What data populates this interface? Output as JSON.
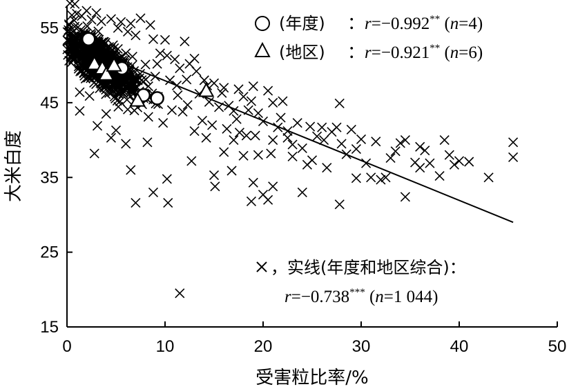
{
  "chart_data": {
    "type": "scatter",
    "xlabel": "受害粒比率/%",
    "ylabel": "大米白度",
    "xlim": [
      0,
      50
    ],
    "ylim": [
      15,
      58
    ],
    "x_ticks": [
      "0",
      "10",
      "20",
      "30",
      "40",
      "50"
    ],
    "y_ticks": [
      "15",
      "25",
      "35",
      "45",
      "55"
    ],
    "grid": false,
    "legend_placement": "top-right",
    "legend": [
      {
        "marker": "circle",
        "name": "(年度)",
        "r_label": "r",
        "stat": "=−0.992",
        "sig": "**",
        "n_label": "n",
        "n_text": "=4"
      },
      {
        "marker": "triangle",
        "name": "(地区)",
        "r_label": "r",
        "stat": "=−0.921",
        "sig": "**",
        "n_label": "n",
        "n_text": "=6"
      }
    ],
    "annotation": {
      "line1": "，实线(年度和地区综合)：",
      "r_label": "r",
      "stat": "=−0.738",
      "sig": "***",
      "n_label": "n",
      "n_text": "=1 044"
    },
    "trend_line": {
      "x": [
        0.5,
        45.5
      ],
      "y": [
        53.0,
        29.0
      ]
    },
    "series": [
      {
        "marker": "cross",
        "scattered_points": [
          [
            0.3,
            58.3
          ],
          [
            0.8,
            58.2
          ],
          [
            0.2,
            55.5
          ],
          [
            0.3,
            54.2
          ],
          [
            0.5,
            53.0
          ],
          [
            0.8,
            52.0
          ],
          [
            1.5,
            56.6
          ],
          [
            2.5,
            56.1
          ],
          [
            3.5,
            55.9
          ],
          [
            5.5,
            55.8
          ],
          [
            6.5,
            55.6
          ],
          [
            7.5,
            56.3
          ],
          [
            8.5,
            55.4
          ],
          [
            10.0,
            53.4
          ],
          [
            12.0,
            53.2
          ],
          [
            9.5,
            51.6
          ],
          [
            11.0,
            50.8
          ],
          [
            12.5,
            50.2
          ],
          [
            13.0,
            50.9
          ],
          [
            11.5,
            49.6
          ],
          [
            14.0,
            48.0
          ],
          [
            15.0,
            47.6
          ],
          [
            16.0,
            47.0
          ],
          [
            17.5,
            46.8
          ],
          [
            19.0,
            47.2
          ],
          [
            20.5,
            46.6
          ],
          [
            18.0,
            45.8
          ],
          [
            13.5,
            46.2
          ],
          [
            14.5,
            45.1
          ],
          [
            15.5,
            44.4
          ],
          [
            16.5,
            44.6
          ],
          [
            17.0,
            43.9
          ],
          [
            18.5,
            44.0
          ],
          [
            19.5,
            43.6
          ],
          [
            20.0,
            42.5
          ],
          [
            21.0,
            45.0
          ],
          [
            22.0,
            45.2
          ],
          [
            21.5,
            41.7
          ],
          [
            22.5,
            41.2
          ],
          [
            23.0,
            39.4
          ],
          [
            24.0,
            38.9
          ],
          [
            24.5,
            36.7
          ],
          [
            25.5,
            40.5
          ],
          [
            26.0,
            41.7
          ],
          [
            26.5,
            36.3
          ],
          [
            27.0,
            41.1
          ],
          [
            27.5,
            41.7
          ],
          [
            27.8,
            44.9
          ],
          [
            28.0,
            39.5
          ],
          [
            28.5,
            38.1
          ],
          [
            29.5,
            38.8
          ],
          [
            30.0,
            40.1
          ],
          [
            30.5,
            36.9
          ],
          [
            29.5,
            34.9
          ],
          [
            31.0,
            35.0
          ],
          [
            32.0,
            34.7
          ],
          [
            32.5,
            35.0
          ],
          [
            33.0,
            37.6
          ],
          [
            33.5,
            38.5
          ],
          [
            34.0,
            39.6
          ],
          [
            34.5,
            40.0
          ],
          [
            36.0,
            39.1
          ],
          [
            36.0,
            36.3
          ],
          [
            37.0,
            36.9
          ],
          [
            38.5,
            40.0
          ],
          [
            39.0,
            38.0
          ],
          [
            39.5,
            36.7
          ],
          [
            41.0,
            37.1
          ],
          [
            38.0,
            35.2
          ],
          [
            45.5,
            39.7
          ],
          [
            45.5,
            37.7
          ],
          [
            34.5,
            32.4
          ],
          [
            36.5,
            38.6
          ],
          [
            22.5,
            40.3
          ],
          [
            23.0,
            37.8
          ],
          [
            25.0,
            37.3
          ],
          [
            18.0,
            37.9
          ],
          [
            16.0,
            38.4
          ],
          [
            19.5,
            38.0
          ],
          [
            21.0,
            40.0
          ],
          [
            17.0,
            40.0
          ],
          [
            18.3,
            40.6
          ],
          [
            15.0,
            35.3
          ],
          [
            19.0,
            34.3
          ],
          [
            20.0,
            32.7
          ],
          [
            21.0,
            33.8
          ],
          [
            20.5,
            32.0
          ],
          [
            18.8,
            31.8
          ],
          [
            24.0,
            33.0
          ],
          [
            27.8,
            31.4
          ],
          [
            8.8,
            33.0
          ],
          [
            10.2,
            34.8
          ],
          [
            10.3,
            31.6
          ],
          [
            7.0,
            31.6
          ],
          [
            11.5,
            19.5
          ],
          [
            6.5,
            36.0
          ],
          [
            2.8,
            38.2
          ],
          [
            4.0,
            43.5
          ],
          [
            5.0,
            41.3
          ],
          [
            6.0,
            39.5
          ],
          [
            4.5,
            40.3
          ],
          [
            8.2,
            39.7
          ],
          [
            12.7,
            37.2
          ],
          [
            15.1,
            33.8
          ],
          [
            13.0,
            41.2
          ],
          [
            14.2,
            40.3
          ],
          [
            11.8,
            43.8
          ],
          [
            9.3,
            44.8
          ],
          [
            7.0,
            45.2
          ],
          [
            3.1,
            41.9
          ],
          [
            1.3,
            43.9
          ],
          [
            16.8,
            35.9
          ],
          [
            10.7,
            44.0
          ],
          [
            12.3,
            44.7
          ],
          [
            13.8,
            42.6
          ],
          [
            14.8,
            42.0
          ],
          [
            16.3,
            41.5
          ],
          [
            17.6,
            41.0
          ],
          [
            19.2,
            40.6
          ],
          [
            20.8,
            38.2
          ],
          [
            9.8,
            42.3
          ],
          [
            8.3,
            43.1
          ],
          [
            6.2,
            44.1
          ],
          [
            11.2,
            47.3
          ],
          [
            12.2,
            48.1
          ],
          [
            13.2,
            49.2
          ],
          [
            9.0,
            48.5
          ],
          [
            10.5,
            48.0
          ],
          [
            8.0,
            50.1
          ],
          [
            9.2,
            50.2
          ],
          [
            10.2,
            51.3
          ],
          [
            8.8,
            53.5
          ],
          [
            7.0,
            54.0
          ],
          [
            6.2,
            54.5
          ],
          [
            5.2,
            55.0
          ],
          [
            4.5,
            56.2
          ],
          [
            3.0,
            57.0
          ],
          [
            2.0,
            57.3
          ],
          [
            1.0,
            56.9
          ],
          [
            0.5,
            56.7
          ],
          [
            1.8,
            54.4
          ],
          [
            23.5,
            42.3
          ],
          [
            24.8,
            41.8
          ],
          [
            26.2,
            40.0
          ],
          [
            29.0,
            41.4
          ],
          [
            31.5,
            39.8
          ],
          [
            35.5,
            37.0
          ],
          [
            40.0,
            37.2
          ],
          [
            43.0,
            35.0
          ],
          [
            15.8,
            46.3
          ],
          [
            14.3,
            47.3
          ],
          [
            18.8,
            45.2
          ],
          [
            17.3,
            42.8
          ],
          [
            21.8,
            43.0
          ],
          [
            11.3,
            46.0
          ],
          [
            8.3,
            47.2
          ],
          [
            5.8,
            46.5
          ],
          [
            4.3,
            46.3
          ],
          [
            2.3,
            45.9
          ],
          [
            1.3,
            46.4
          ]
        ]
      },
      {
        "marker": "circle",
        "points": [
          [
            2.2,
            53.5
          ],
          [
            7.8,
            46.0
          ],
          [
            9.2,
            45.6
          ],
          [
            5.6,
            49.6
          ]
        ]
      },
      {
        "marker": "triangle",
        "points": [
          [
            2.8,
            50.2
          ],
          [
            3.6,
            49.6
          ],
          [
            4.0,
            48.8
          ],
          [
            4.8,
            50.0
          ],
          [
            7.2,
            45.3
          ],
          [
            14.2,
            46.6
          ]
        ]
      }
    ]
  }
}
